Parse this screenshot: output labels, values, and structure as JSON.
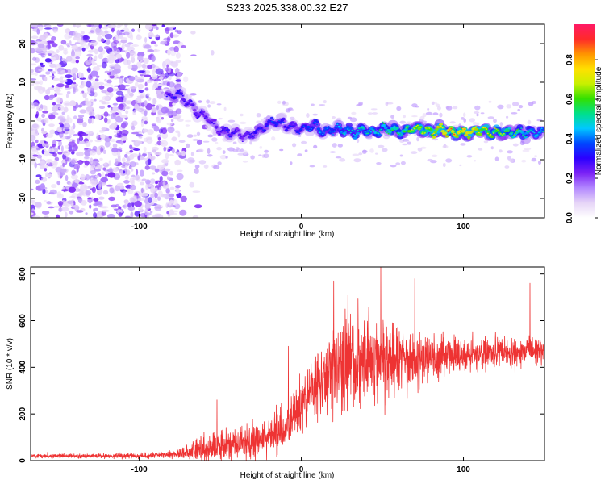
{
  "title": "S233.2025.338.00.32.E27",
  "chart_data": [
    {
      "type": "heatmap",
      "xlabel": "Height of straight line (km)",
      "ylabel": "Frequency (Hz)",
      "xlim": [
        -167,
        150
      ],
      "ylim": [
        -25,
        25
      ],
      "xticks": [
        -100,
        0,
        100
      ],
      "yticks": [
        -20,
        -10,
        0,
        10,
        20
      ],
      "colorbar": {
        "label": "Normalized spectral amplitude",
        "range": [
          0,
          0.98
        ],
        "ticks": [
          0.0,
          0.2,
          0.4,
          0.6,
          0.8
        ],
        "colormap": [
          "#ffffff",
          "#e6d5f7",
          "#b388ff",
          "#7b22f5",
          "#2b00ff",
          "#0046ff",
          "#00c8ff",
          "#00e08a",
          "#33e000",
          "#c8f000",
          "#ffe000",
          "#ff9400",
          "#ff2a2a",
          "#ff1a66"
        ]
      },
      "ridge": {
        "description_free_x": [
          -83,
          -76,
          -70,
          -64,
          -58,
          -52,
          -46,
          -40,
          -34,
          -28,
          -22,
          -16,
          -10,
          -4,
          2,
          8,
          14,
          20,
          26,
          32,
          38,
          44,
          50,
          56,
          62,
          68,
          74,
          80,
          86,
          92,
          98,
          104,
          110,
          116,
          122,
          128,
          134,
          140,
          146,
          150
        ],
        "y": [
          6,
          7,
          5,
          2,
          1,
          -2,
          -3,
          -3,
          -4,
          -3,
          -1,
          0,
          -1,
          -2,
          -2,
          -1,
          -3,
          -2,
          -2,
          -3,
          -2,
          -3,
          -2,
          -2,
          -3,
          -2,
          -2,
          -3,
          -2,
          -3,
          -3,
          -3,
          -2,
          -3,
          -3,
          -3,
          -3,
          -3,
          -3,
          -3
        ],
        "amplitude": [
          0.3,
          0.35,
          0.3,
          0.3,
          0.3,
          0.3,
          0.35,
          0.3,
          0.3,
          0.35,
          0.35,
          0.4,
          0.35,
          0.35,
          0.4,
          0.45,
          0.45,
          0.45,
          0.5,
          0.5,
          0.55,
          0.5,
          0.55,
          0.6,
          0.6,
          0.75,
          0.75,
          0.8,
          0.85,
          0.9,
          0.9,
          0.85,
          0.8,
          0.75,
          0.7,
          0.65,
          0.6,
          0.55,
          0.5,
          0.5
        ]
      }
    },
    {
      "type": "line",
      "xlabel": "Height of straight line (km)",
      "ylabel": "SNR (10 * v/v)",
      "xlim": [
        -167,
        150
      ],
      "ylim": [
        0,
        830
      ],
      "xticks": [
        -100,
        0,
        100
      ],
      "yticks": [
        0,
        200,
        400,
        600,
        800
      ],
      "color": "#ee3333",
      "envelope": {
        "x": [
          -167,
          -130,
          -100,
          -80,
          -70,
          -60,
          -50,
          -40,
          -30,
          -20,
          -10,
          -5,
          0,
          5,
          10,
          15,
          20,
          25,
          30,
          40,
          50,
          60,
          70,
          80,
          90,
          100,
          110,
          120,
          130,
          140,
          150
        ],
        "mean": [
          20,
          20,
          20,
          25,
          35,
          50,
          60,
          70,
          80,
          100,
          130,
          170,
          230,
          300,
          330,
          350,
          380,
          400,
          420,
          430,
          440,
          440,
          440,
          440,
          450,
          450,
          460,
          460,
          460,
          470,
          470
        ],
        "spread": [
          8,
          8,
          10,
          15,
          25,
          60,
          60,
          60,
          70,
          80,
          90,
          100,
          110,
          130,
          140,
          160,
          180,
          200,
          200,
          190,
          180,
          140,
          110,
          90,
          80,
          70,
          60,
          60,
          60,
          60,
          60
        ]
      },
      "peaks": [
        {
          "x": -52,
          "y": 260
        },
        {
          "x": -8,
          "y": 490
        },
        {
          "x": 20,
          "y": 770
        },
        {
          "x": 27,
          "y": 650
        },
        {
          "x": 49,
          "y": 830
        },
        {
          "x": 70,
          "y": 780
        },
        {
          "x": 141,
          "y": 760
        }
      ]
    }
  ]
}
